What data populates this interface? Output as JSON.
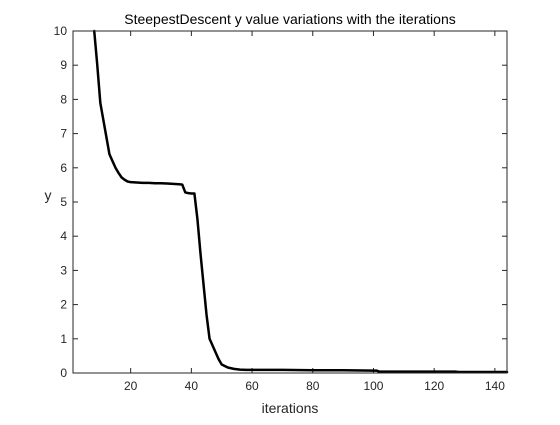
{
  "chart_data": {
    "type": "line",
    "title": "SteepestDescent y value variations with the iterations",
    "xlabel": "iterations",
    "ylabel": "y",
    "xlim": [
      1,
      144
    ],
    "ylim": [
      0,
      10
    ],
    "xticks": [
      20,
      40,
      60,
      80,
      100,
      120,
      140
    ],
    "yticks": [
      0,
      1,
      2,
      3,
      4,
      5,
      6,
      7,
      8,
      9,
      10
    ],
    "grid": false,
    "box": true,
    "line_color": "#000000",
    "series": [
      {
        "x": [
          8,
          9,
          10,
          11,
          12,
          13,
          14,
          15,
          16,
          17,
          18,
          19,
          20,
          22,
          24,
          26,
          28,
          30,
          32,
          34,
          36,
          37,
          38,
          39,
          40,
          41,
          42,
          43,
          44,
          45,
          46,
          47,
          48,
          49,
          50,
          52,
          54,
          56,
          58,
          60,
          65,
          70,
          80,
          90,
          100,
          101,
          102,
          103,
          110,
          120,
          127,
          128,
          130,
          144
        ],
        "y": [
          10.0,
          9.0,
          7.9,
          7.4,
          6.9,
          6.4,
          6.2,
          6.0,
          5.85,
          5.72,
          5.65,
          5.6,
          5.58,
          5.57,
          5.56,
          5.56,
          5.55,
          5.55,
          5.54,
          5.53,
          5.52,
          5.51,
          5.28,
          5.26,
          5.25,
          5.25,
          4.5,
          3.5,
          2.6,
          1.7,
          1.0,
          0.8,
          0.6,
          0.4,
          0.25,
          0.16,
          0.12,
          0.1,
          0.09,
          0.09,
          0.09,
          0.09,
          0.08,
          0.08,
          0.07,
          0.07,
          0.04,
          0.04,
          0.04,
          0.04,
          0.04,
          0.03,
          0.03,
          0.03
        ]
      }
    ]
  }
}
